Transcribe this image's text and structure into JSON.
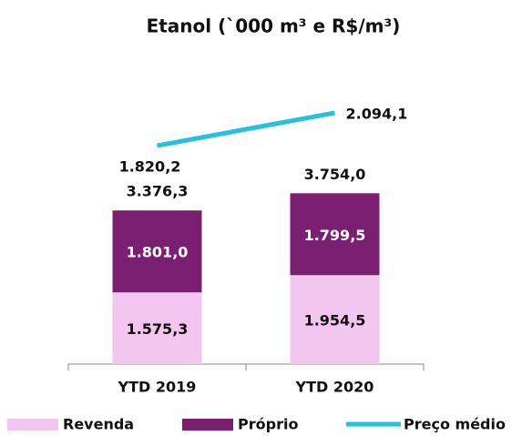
{
  "chart_data": {
    "type": "bar",
    "stacked": true,
    "title": "Etanol (`000 m³ e R$/m³)",
    "categories": [
      "YTD 2019",
      "YTD 2020"
    ],
    "series": [
      {
        "name": "Revenda",
        "color": "#f2c6ef",
        "values": [
          1575.3,
          1954.5
        ],
        "value_labels": [
          "1.575,3",
          "1.954,5"
        ]
      },
      {
        "name": "Próprio",
        "color": "#7b1f73",
        "values": [
          1801.0,
          1799.5
        ],
        "value_labels": [
          "1.801,0",
          "1.799,5"
        ]
      },
      {
        "name": "Preço médio",
        "type": "line",
        "axis": "y2",
        "color": "#26c1dd",
        "values": [
          1820.2,
          2094.1
        ],
        "value_labels": [
          "1.820,2",
          "2.094,1"
        ]
      }
    ],
    "totals": [
      3376.3,
      3754.0
    ],
    "total_labels": [
      "3.376,3",
      "3.754,0"
    ],
    "ylim": [
      0,
      5800
    ],
    "y2lim": [
      0,
      2200
    ],
    "legend": "bottom"
  }
}
